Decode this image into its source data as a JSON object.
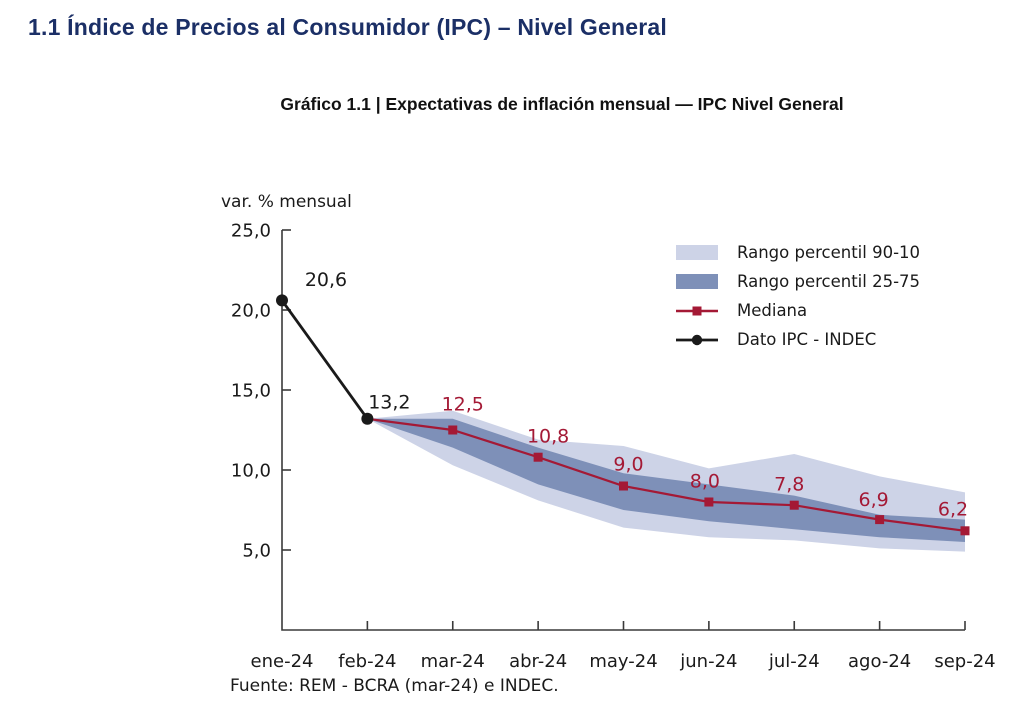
{
  "page": {
    "section_title": "1.1 Índice de Precios al Consumidor (IPC) – Nivel General",
    "chart_title": "Gráfico 1.1 | Expectativas de inflación mensual — IPC Nivel General",
    "source": "Fuente: REM - BCRA (mar-24) e INDEC."
  },
  "colors": {
    "heading": "#1b2f66",
    "band_90_10": "#cdd3e7",
    "band_25_75": "#7e90b8",
    "mediana": "#a41935",
    "ipc_indec": "#1a1a1a",
    "axis": "#3a3a3a"
  },
  "chart_data": {
    "type": "line",
    "title": "Gráfico 1.1 | Expectativas de inflación mensual — IPC Nivel General",
    "unit_label": "var. % mensual",
    "categories": [
      "ene-24",
      "feb-24",
      "mar-24",
      "abr-24",
      "may-24",
      "jun-24",
      "jul-24",
      "ago-24",
      "sep-24"
    ],
    "ylim": [
      0,
      25
    ],
    "grid": false,
    "legend_position": "upper right",
    "yticks": [
      {
        "v": 25,
        "label": "25,0"
      },
      {
        "v": 20,
        "label": "20,0"
      },
      {
        "v": 15,
        "label": "15,0"
      },
      {
        "v": 10,
        "label": "10,0"
      },
      {
        "v": 5,
        "label": "5,0"
      }
    ],
    "bands": [
      {
        "name": "Rango percentil 90-10",
        "color": "#cdd3e7",
        "start_index": 1,
        "upper": [
          13.2,
          13.7,
          11.9,
          11.5,
          10.1,
          11.0,
          9.6,
          8.6
        ],
        "lower": [
          13.2,
          10.3,
          8.1,
          6.4,
          5.8,
          5.6,
          5.1,
          4.9
        ]
      },
      {
        "name": "Rango percentil 25-75",
        "color": "#7e90b8",
        "start_index": 1,
        "upper": [
          13.2,
          13.2,
          11.4,
          9.8,
          9.1,
          8.4,
          7.2,
          6.9
        ],
        "lower": [
          13.2,
          11.4,
          9.1,
          7.5,
          6.8,
          6.3,
          5.8,
          5.5
        ]
      }
    ],
    "series": [
      {
        "name": "Mediana",
        "color": "#a41935",
        "marker": "square",
        "start_index": 1,
        "values": [
          13.2,
          12.5,
          10.8,
          9.0,
          8.0,
          7.8,
          6.9,
          6.2
        ],
        "point_labels": [
          "",
          "12,5",
          "10,8",
          "9,0",
          "8,0",
          "7,8",
          "6,9",
          "6,2"
        ]
      },
      {
        "name": "Dato IPC - INDEC",
        "color": "#1a1a1a",
        "marker": "circle",
        "start_index": 0,
        "values": [
          20.6,
          13.2
        ],
        "point_labels": [
          "20,6",
          "13,2"
        ]
      }
    ],
    "legend": [
      "Rango percentil 90-10",
      "Rango percentil 25-75",
      "Mediana",
      "Dato IPC - INDEC"
    ]
  }
}
